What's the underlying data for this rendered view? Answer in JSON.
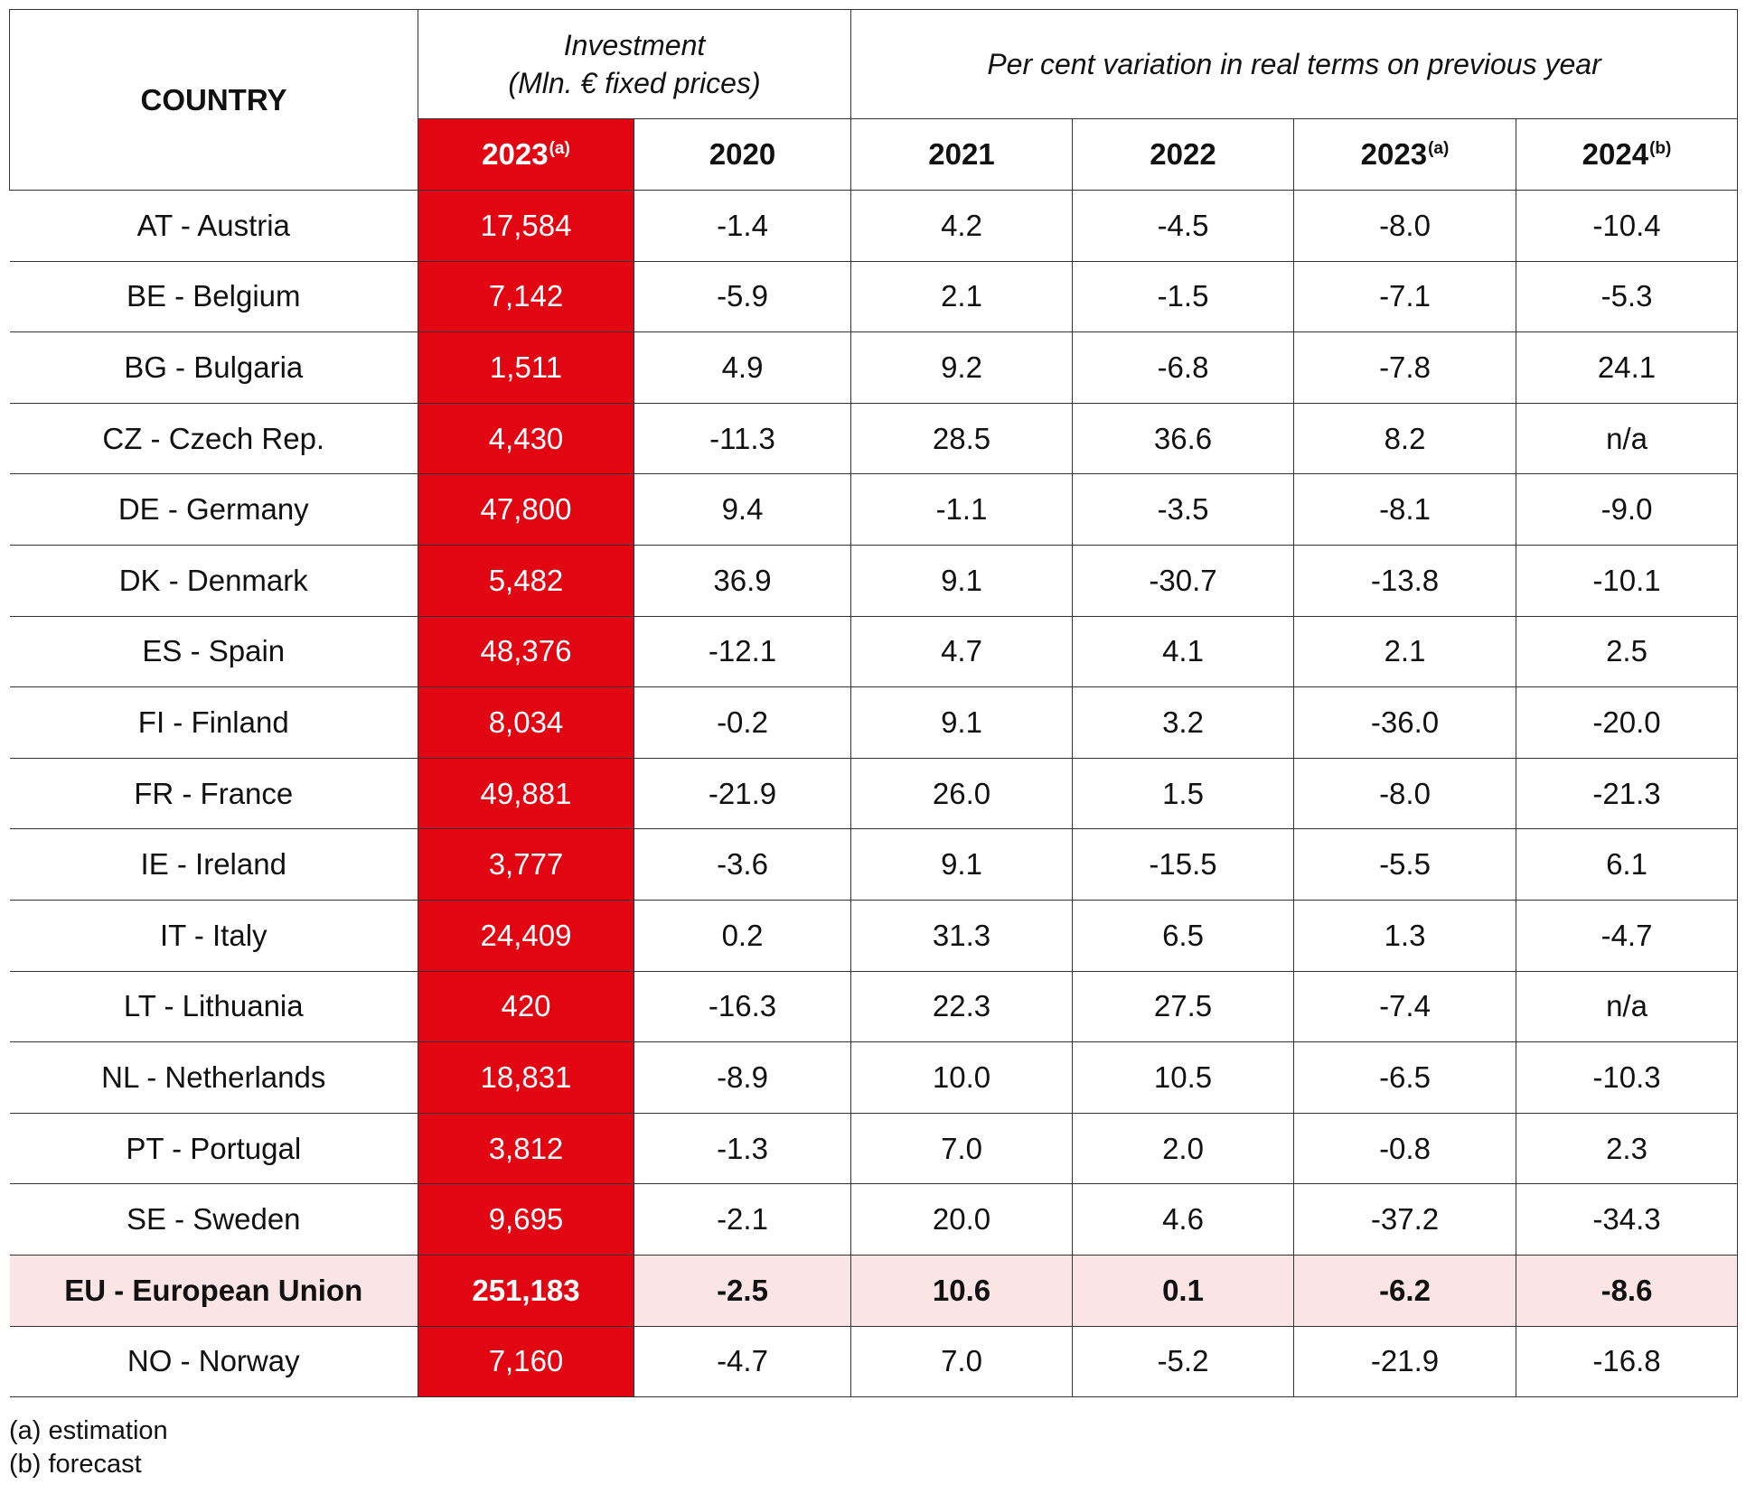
{
  "header": {
    "country_label": "COUNTRY",
    "investment_line1": "Investment",
    "investment_line2": "(Mln. € fixed prices)",
    "variation_label": "Per cent variation in real terms on previous year",
    "years": [
      {
        "year": "2023",
        "sup": "(a)"
      },
      {
        "year": "2020",
        "sup": ""
      },
      {
        "year": "2021",
        "sup": ""
      },
      {
        "year": "2022",
        "sup": ""
      },
      {
        "year": "2023",
        "sup": "(a)"
      },
      {
        "year": "2024",
        "sup": "(b)"
      }
    ]
  },
  "rows": [
    {
      "country": "AT - Austria",
      "investment": "17,584",
      "v2020": "-1.4",
      "v2021": "4.2",
      "v2022": "-4.5",
      "v2023": "-8.0",
      "v2024": "-10.4"
    },
    {
      "country": "BE - Belgium",
      "investment": "7,142",
      "v2020": "-5.9",
      "v2021": "2.1",
      "v2022": "-1.5",
      "v2023": "-7.1",
      "v2024": "-5.3"
    },
    {
      "country": "BG - Bulgaria",
      "investment": "1,511",
      "v2020": "4.9",
      "v2021": "9.2",
      "v2022": "-6.8",
      "v2023": "-7.8",
      "v2024": "24.1"
    },
    {
      "country": "CZ - Czech Rep.",
      "investment": "4,430",
      "v2020": "-11.3",
      "v2021": "28.5",
      "v2022": "36.6",
      "v2023": "8.2",
      "v2024": "n/a"
    },
    {
      "country": "DE - Germany",
      "investment": "47,800",
      "v2020": "9.4",
      "v2021": "-1.1",
      "v2022": "-3.5",
      "v2023": "-8.1",
      "v2024": "-9.0"
    },
    {
      "country": "DK - Denmark",
      "investment": "5,482",
      "v2020": "36.9",
      "v2021": "9.1",
      "v2022": "-30.7",
      "v2023": "-13.8",
      "v2024": "-10.1"
    },
    {
      "country": "ES - Spain",
      "investment": "48,376",
      "v2020": "-12.1",
      "v2021": "4.7",
      "v2022": "4.1",
      "v2023": "2.1",
      "v2024": "2.5"
    },
    {
      "country": "FI - Finland",
      "investment": "8,034",
      "v2020": "-0.2",
      "v2021": "9.1",
      "v2022": "3.2",
      "v2023": "-36.0",
      "v2024": "-20.0"
    },
    {
      "country": "FR - France",
      "investment": "49,881",
      "v2020": "-21.9",
      "v2021": "26.0",
      "v2022": "1.5",
      "v2023": "-8.0",
      "v2024": "-21.3"
    },
    {
      "country": "IE - Ireland",
      "investment": "3,777",
      "v2020": "-3.6",
      "v2021": "9.1",
      "v2022": "-15.5",
      "v2023": "-5.5",
      "v2024": "6.1"
    },
    {
      "country": "IT - Italy",
      "investment": "24,409",
      "v2020": "0.2",
      "v2021": "31.3",
      "v2022": "6.5",
      "v2023": "1.3",
      "v2024": "-4.7"
    },
    {
      "country": "LT - Lithuania",
      "investment": "420",
      "v2020": "-16.3",
      "v2021": "22.3",
      "v2022": "27.5",
      "v2023": "-7.4",
      "v2024": "n/a"
    },
    {
      "country": "NL - Netherlands",
      "investment": "18,831",
      "v2020": "-8.9",
      "v2021": "10.0",
      "v2022": "10.5",
      "v2023": "-6.5",
      "v2024": "-10.3"
    },
    {
      "country": "PT - Portugal",
      "investment": "3,812",
      "v2020": "-1.3",
      "v2021": "7.0",
      "v2022": "2.0",
      "v2023": "-0.8",
      "v2024": "2.3"
    },
    {
      "country": "SE - Sweden",
      "investment": "9,695",
      "v2020": "-2.1",
      "v2021": "20.0",
      "v2022": "4.6",
      "v2023": "-37.2",
      "v2024": "-34.3"
    },
    {
      "country": "EU - European Union",
      "investment": "251,183",
      "v2020": "-2.5",
      "v2021": "10.6",
      "v2022": "0.1",
      "v2023": "-6.2",
      "v2024": "-8.6",
      "highlight": true
    },
    {
      "country": "NO - Norway",
      "investment": "7,160",
      "v2020": "-4.7",
      "v2021": "7.0",
      "v2022": "-5.2",
      "v2023": "-21.9",
      "v2024": "-16.8"
    }
  ],
  "footnotes": {
    "a": "(a) estimation",
    "b": "(b) forecast"
  },
  "colors": {
    "accent_red": "#e20613",
    "highlight_row": "#fbe4e6"
  }
}
